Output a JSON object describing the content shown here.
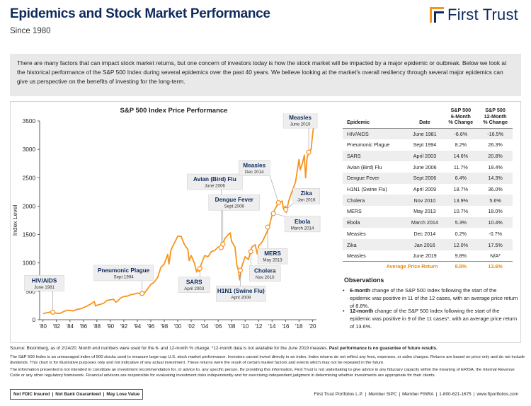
{
  "header": {
    "title": "Epidemics and Stock Market Performance",
    "subtitle": "Since 1980",
    "logo_text": "First Trust",
    "brand_color": "#0d2a5c",
    "accent_color": "#f7941d"
  },
  "intro": "There are many factors that can impact stock market returns, but one concern of investors today is how the stock market will be impacted by a major epidemic or outbreak. Below we look at the historical performance of the S&P 500 Index during several epidemics over the past 40 years. We believe looking at the market's overall resiliency through several major epidemics can give us perspective on the benefits of investing for the long-term.",
  "chart_data": {
    "type": "line",
    "title": "S&P 500 Index Price Performance",
    "ylabel": "Index Level",
    "xlabel": "",
    "ylim": [
      0,
      3500
    ],
    "xlim": [
      1979.5,
      2020.6
    ],
    "yticks": [
      0,
      500,
      1000,
      1500,
      2000,
      2500,
      3000,
      3500
    ],
    "xticks": [
      "'80",
      "'82",
      "'84",
      "'86",
      "'88",
      "'90",
      "'92",
      "'94",
      "'96",
      "'98",
      "'00",
      "'02",
      "'04",
      "'06",
      "'08",
      "'10",
      "'12",
      "'14",
      "'16",
      "'18",
      "'20"
    ],
    "grid": false,
    "line_color": "#f7941d",
    "series": [
      {
        "x": [
          1980.0,
          1980.5,
          1981.0,
          1981.5,
          1982.0,
          1982.5,
          1983.0,
          1983.5,
          1984.0,
          1984.5,
          1985.0,
          1985.5,
          1986.0,
          1986.5,
          1987.0,
          1987.6,
          1987.8,
          1988.0,
          1988.5,
          1989.0,
          1989.5,
          1990.0,
          1990.5,
          1990.8,
          1991.0,
          1991.5,
          1992.0,
          1992.5,
          1993.0,
          1993.5,
          1994.0,
          1994.5,
          1995.0,
          1995.5,
          1996.0,
          1996.5,
          1997.0,
          1997.5,
          1998.0,
          1998.5,
          1998.7,
          1999.0,
          1999.5,
          2000.0,
          2000.5,
          2001.0,
          2001.5,
          2001.7,
          2002.0,
          2002.5,
          2002.8,
          2003.0,
          2003.2,
          2003.5,
          2004.0,
          2004.5,
          2005.0,
          2005.5,
          2006.0,
          2006.5,
          2007.0,
          2007.5,
          2007.8,
          2008.0,
          2008.5,
          2008.8,
          2009.0,
          2009.2,
          2009.5,
          2010.0,
          2010.5,
          2011.0,
          2011.5,
          2011.8,
          2012.0,
          2012.5,
          2013.0,
          2013.5,
          2014.0,
          2014.5,
          2015.0,
          2015.5,
          2015.7,
          2016.0,
          2016.1,
          2016.5,
          2017.0,
          2017.5,
          2018.0,
          2018.2,
          2018.5,
          2018.8,
          2018.98,
          2019.2,
          2019.5,
          2019.8,
          2020.0,
          2020.15
        ],
        "y": [
          110,
          120,
          135,
          125,
          115,
          110,
          140,
          165,
          165,
          155,
          180,
          190,
          210,
          240,
          270,
          320,
          240,
          255,
          270,
          290,
          340,
          350,
          360,
          310,
          320,
          380,
          410,
          415,
          440,
          450,
          470,
          460,
          460,
          540,
          620,
          660,
          740,
          920,
          980,
          1150,
          980,
          1230,
          1350,
          1470,
          1470,
          1320,
          1240,
          1040,
          1130,
          990,
          840,
          880,
          850,
          980,
          1130,
          1110,
          1200,
          1220,
          1280,
          1270,
          1430,
          1500,
          1530,
          1380,
          1280,
          950,
          880,
          700,
          930,
          1110,
          1060,
          1280,
          1320,
          1160,
          1300,
          1360,
          1480,
          1610,
          1840,
          1960,
          2060,
          2090,
          1950,
          2000,
          1890,
          2100,
          2270,
          2430,
          2820,
          2640,
          2750,
          2900,
          2500,
          2850,
          2950,
          3000,
          3230,
          3380
        ]
      }
    ],
    "annotations": [
      {
        "label": "HIV/AIDS",
        "date": "June 1981",
        "x": 1981.45,
        "y": 132
      },
      {
        "label": "Pneumonic Plague",
        "date": "Sept 1994",
        "x": 1994.7,
        "y": 462
      },
      {
        "label": "Avian (Bird) Flu",
        "date": "June 2006",
        "x": 2006.45,
        "y": 1270
      },
      {
        "label": "SARS",
        "date": "April 2003",
        "x": 2003.28,
        "y": 900
      },
      {
        "label": "Dengue Fever",
        "date": "Sept 2006",
        "x": 2006.7,
        "y": 1330
      },
      {
        "label": "H1N1 (Swine Flu)",
        "date": "April 2009",
        "x": 2009.28,
        "y": 870
      },
      {
        "label": "Cholera",
        "date": "Nov 2010",
        "x": 2010.85,
        "y": 1200
      },
      {
        "label": "MERS",
        "date": "May 2013",
        "x": 2013.35,
        "y": 1630
      },
      {
        "label": "Measles",
        "date": "Dec 2014",
        "x": 2014.95,
        "y": 2060
      },
      {
        "label": "Ebola",
        "date": "March 2014",
        "x": 2014.2,
        "y": 1870
      },
      {
        "label": "Zika",
        "date": "Jan 2016",
        "x": 2016.05,
        "y": 1940
      },
      {
        "label": "Measles",
        "date": "June 2019",
        "x": 2019.45,
        "y": 2950
      }
    ]
  },
  "table": {
    "headers": {
      "epidemic": "Epidemic",
      "date": "Date",
      "six_month": [
        "S&P 500",
        "6-Month",
        "% Change"
      ],
      "twelve_month": [
        "S&P 500",
        "12-Month",
        "% Change"
      ]
    },
    "rows": [
      {
        "epidemic": "HIV/AIDS",
        "date": "June 1981",
        "six": "-6.6%",
        "twelve": "-16.5%"
      },
      {
        "epidemic": "Pneumonic Plague",
        "date": "Sept 1994",
        "six": "8.2%",
        "twelve": "26.3%"
      },
      {
        "epidemic": "SARS",
        "date": "April 2003",
        "six": "14.6%",
        "twelve": "20.8%"
      },
      {
        "epidemic": "Avian (Bird) Flu",
        "date": "June 2006",
        "six": "11.7%",
        "twelve": "18.4%"
      },
      {
        "epidemic": "Dengue Fever",
        "date": "Sept 2006",
        "six": "6.4%",
        "twelve": "14.3%"
      },
      {
        "epidemic": "H1N1 (Swine Flu)",
        "date": "April 2009",
        "six": "18.7%",
        "twelve": "36.0%"
      },
      {
        "epidemic": "Cholera",
        "date": "Nov 2010",
        "six": "13.9%",
        "twelve": "5.6%"
      },
      {
        "epidemic": "MERS",
        "date": "May 2013",
        "six": "10.7%",
        "twelve": "18.0%"
      },
      {
        "epidemic": "Ebola",
        "date": "March 2014",
        "six": "5.3%",
        "twelve": "10.4%"
      },
      {
        "epidemic": "Measles",
        "date": "Dec 2014",
        "six": "0.2%",
        "twelve": "-0.7%"
      },
      {
        "epidemic": "Zika",
        "date": "Jan 2016",
        "six": "12.0%",
        "twelve": "17.5%"
      },
      {
        "epidemic": "Measles",
        "date": "June 2019",
        "six": "9.8%",
        "twelve": "N/A*"
      }
    ],
    "average": {
      "label": "Average Price Return",
      "six": "8.8%",
      "twelve": "13.6%"
    }
  },
  "observations": {
    "title": "Observations",
    "items": [
      {
        "lead": "6-month",
        "text": " change of the S&P 500 Index following the start of the epidemic was positive in 11 of the 12 cases, with an average price return of 8.8%."
      },
      {
        "lead": "12-month",
        "text": " change of the S&P 500 Index following the start of the epidemic was positive in 9 of the 11 cases*, with an average price return of 13.6%."
      }
    ]
  },
  "sources": {
    "line1": "Source: Bloomberg, as of 2/24/20. Month end numbers were used for the 6- and 12-month % change. *12-month data is not available for the June 2019 measles.",
    "line1_bold": " Past performance is no guarantee of future results.",
    "line2": "The S&P 500 Index is an unmanaged index of 500 stocks used to measure large-cap U.S. stock market performance. Investors cannot invest directly in an index. Index returns do not reflect any fees, expenses, or sales charges. Returns are based on price only and do not include dividends. This chart is for illustrative purposes only and not indicative of any actual investment. These returns were the result of certain market factors and events which may not be repeated in the future.",
    "line3": "The information presented is not intended to constitute an investment recommendation for, or advice to, any specific person. By providing this information, First Trust is not undertaking to give advice in any fiduciary capacity within the meaning of ERISA, the Internal Revenue Code or any other regulatory framework. Financial advisors are responsible for evaluating investment risks independently and for exercising independent judgment in determining whether investments are appropriate for their clients."
  },
  "footer": {
    "badges": [
      "Not FDIC Insured",
      "Not Bank Guaranteed",
      "May Lose Value"
    ],
    "right": [
      "First Trust Portfolios L.P.",
      "Member SIPC",
      "Member FINRA",
      "1-800-621-1675",
      "www.ftportfolios.com"
    ]
  }
}
